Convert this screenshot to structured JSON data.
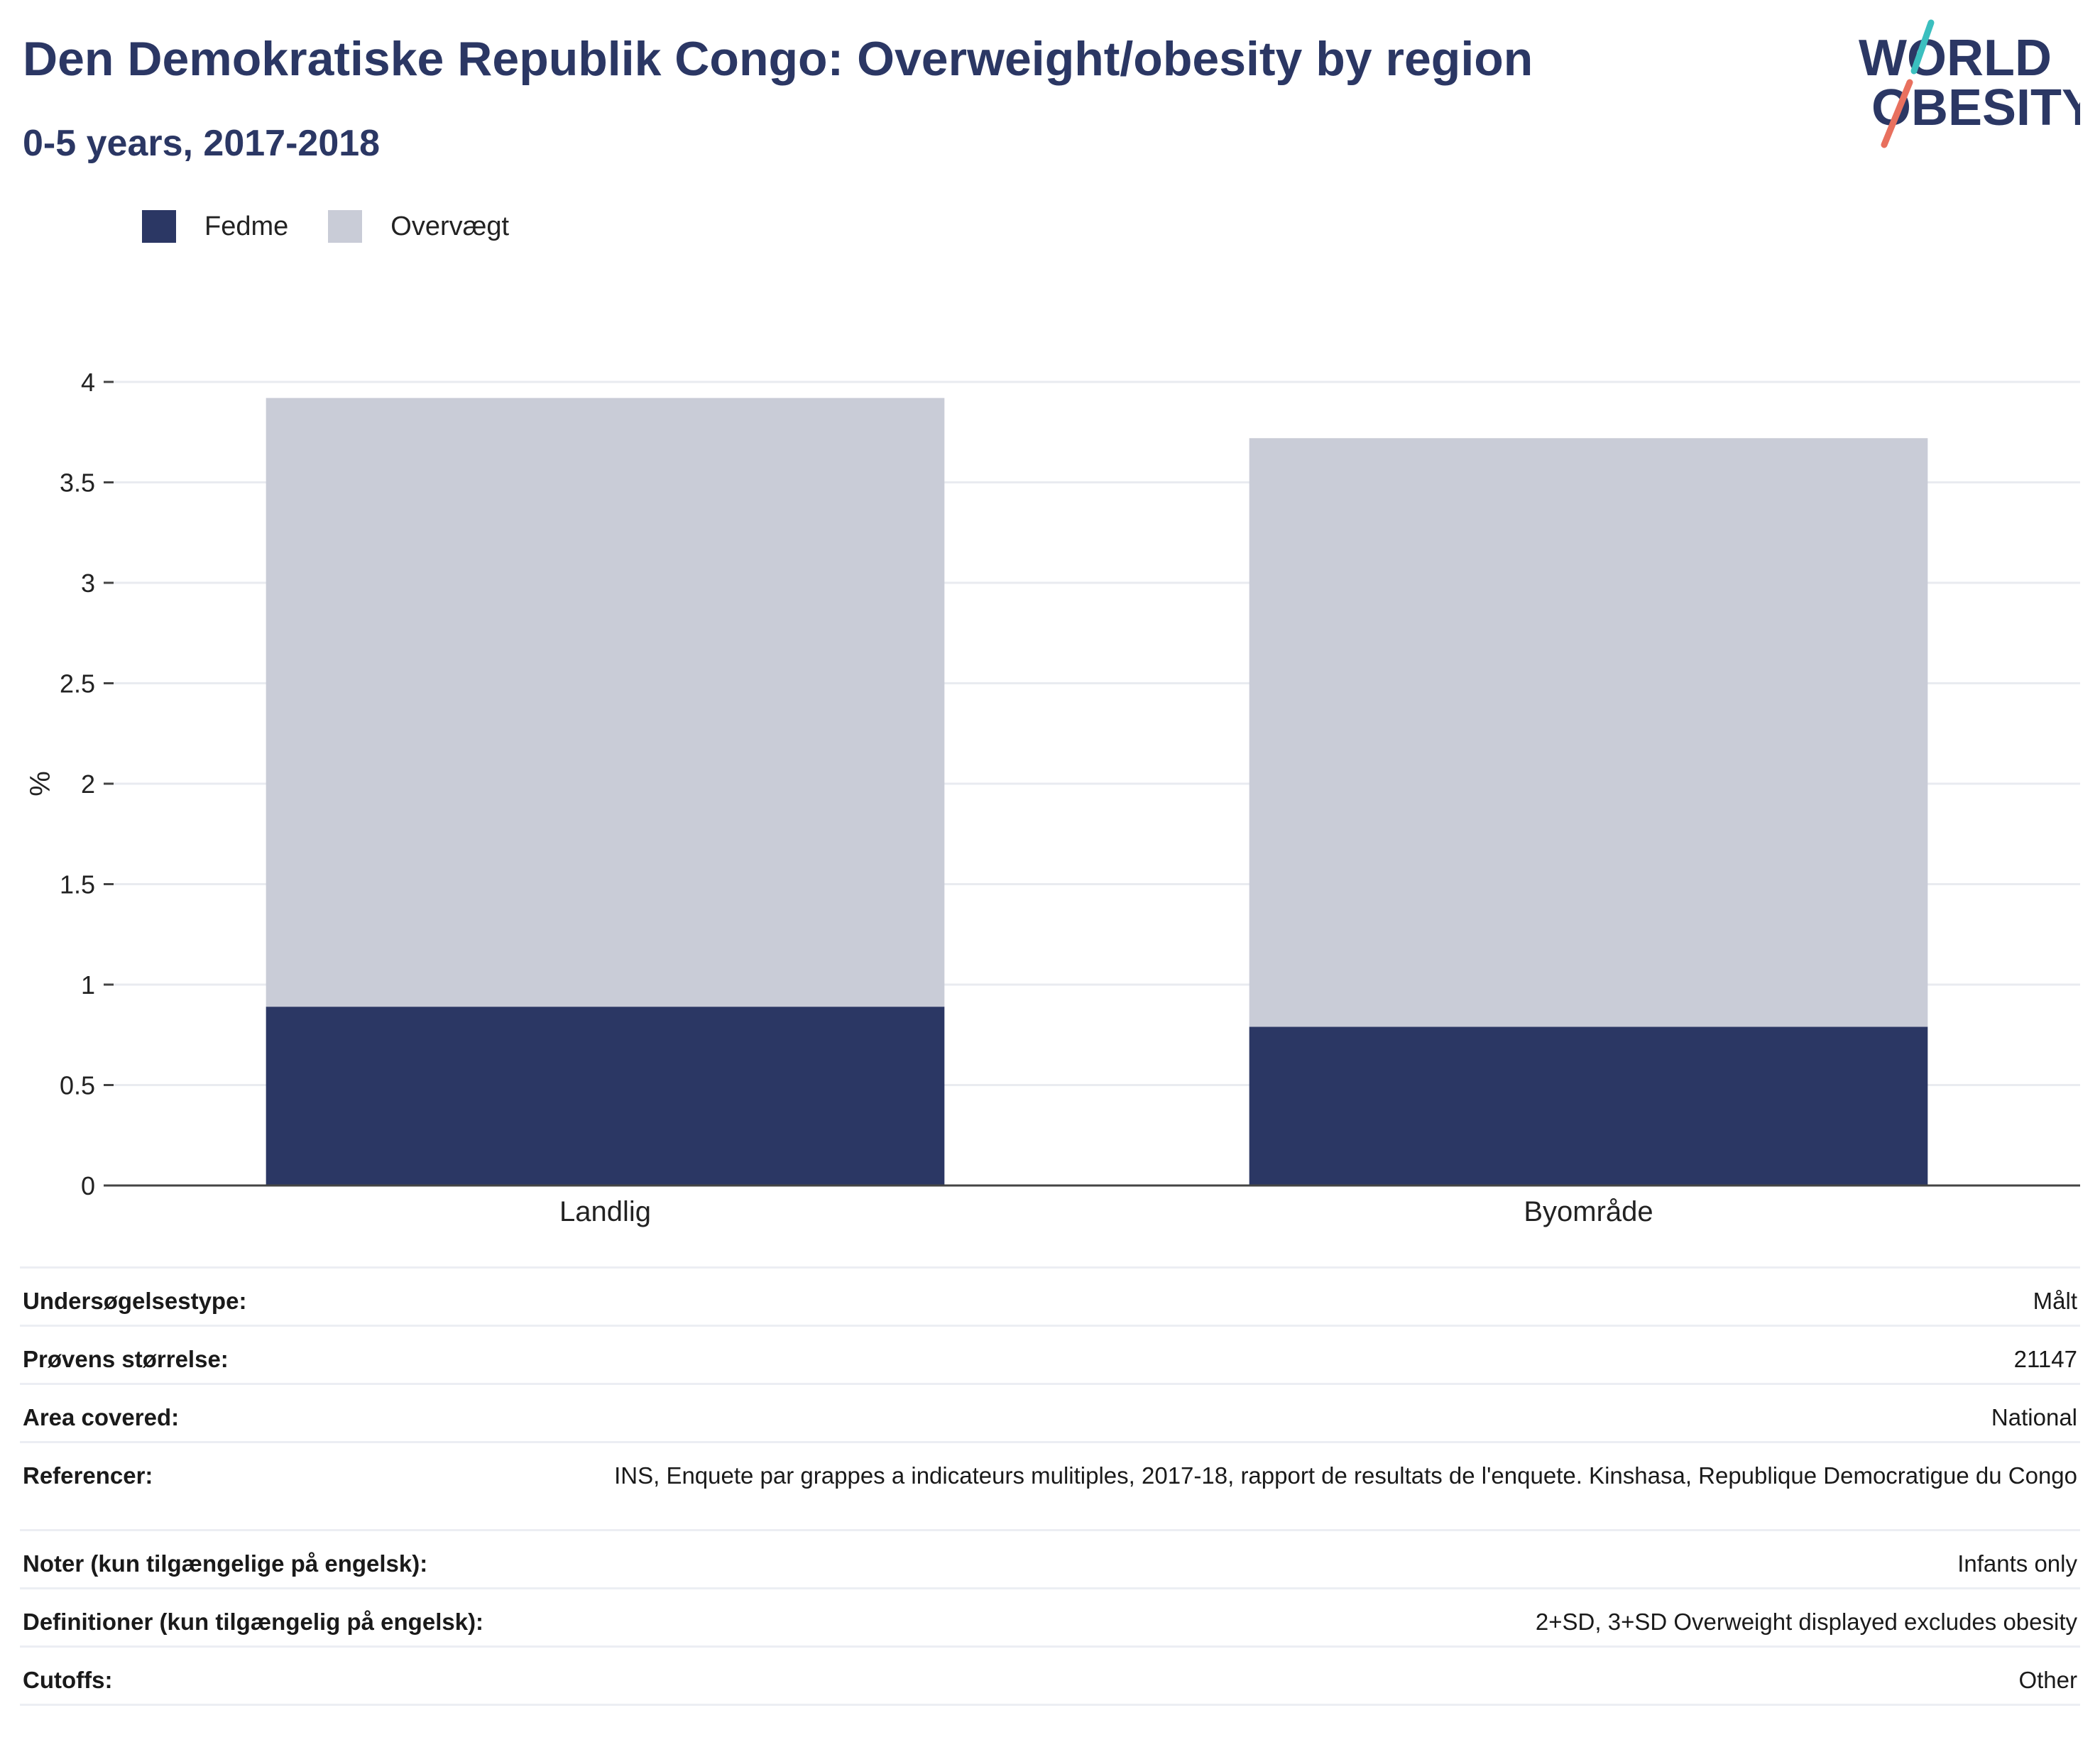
{
  "header": {
    "title": "Den Demokratiske Republik Congo: Overweight/obesity by region",
    "subtitle": "0-5 years, 2017-2018"
  },
  "logo": {
    "line1": "WORLD",
    "line2": "OBESITY",
    "colors": {
      "text": "#2b3764",
      "slash_top": "#3bbfbf",
      "slash_bottom": "#e8705e"
    }
  },
  "chart_data": {
    "type": "bar",
    "stacked": true,
    "categories": [
      "Landlig",
      "Byområde"
    ],
    "series": [
      {
        "name": "Fedme",
        "values": [
          0.89,
          0.79
        ],
        "color": "#2b3764"
      },
      {
        "name": "Overvægt",
        "values": [
          3.03,
          2.93
        ],
        "color": "#c9ccd7"
      }
    ],
    "title": "Den Demokratiske Republik Congo: Overweight/obesity by region",
    "subtitle": "0-5 years, 2017-2018",
    "xlabel": "",
    "ylabel": "%",
    "ylim": [
      0,
      4
    ],
    "yticks": [
      0,
      0.5,
      1,
      1.5,
      2,
      2.5,
      3,
      3.5,
      4
    ],
    "ytick_labels": [
      "0",
      "0.5",
      "1",
      "1.5",
      "2",
      "2.5",
      "3",
      "3.5",
      "4"
    ],
    "grid": true,
    "legend_position": "top-left"
  },
  "meta": {
    "rows": [
      {
        "label": "Undersøgelsestype:",
        "value": "Målt"
      },
      {
        "label": "Prøvens størrelse:",
        "value": "21147"
      },
      {
        "label": "Area covered:",
        "value": "National"
      },
      {
        "label": "Referencer:",
        "value": "INS, Enquete par grappes a indicateurs mulitiples, 2017-18, rapport de resultats de l'enquete. Kinshasa, Republique Democratigue du Congo"
      },
      {
        "label": "Noter (kun tilgængelige på engelsk):",
        "value": "Infants only"
      },
      {
        "label": "Definitioner (kun tilgængelig på engelsk):",
        "value": "2+SD, 3+SD Overweight displayed excludes obesity"
      },
      {
        "label": "Cutoffs:",
        "value": "Other"
      }
    ]
  }
}
